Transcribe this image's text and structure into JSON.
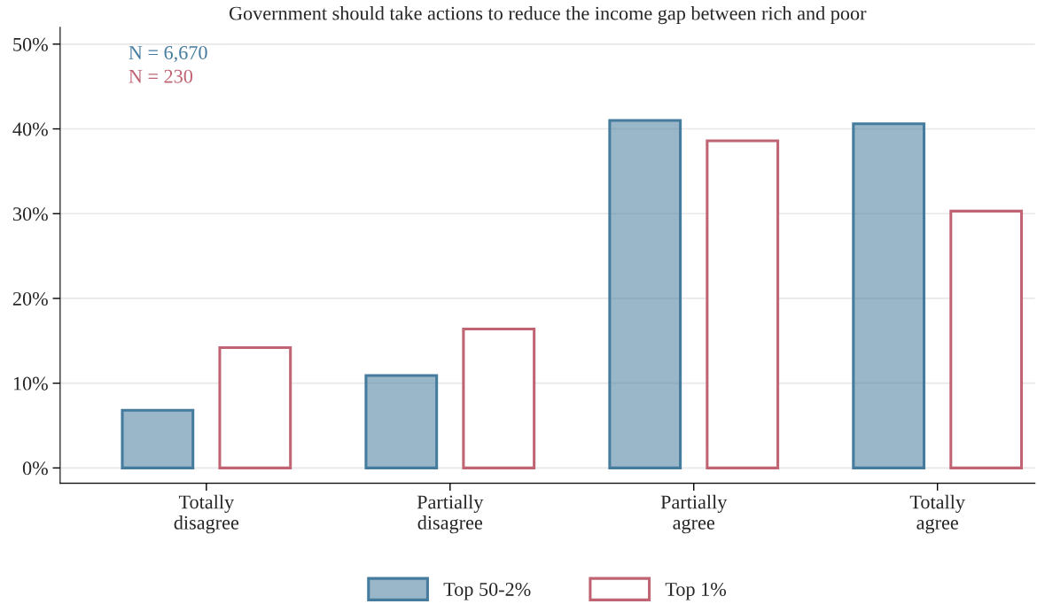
{
  "chart_data": {
    "type": "bar",
    "title": "Government should take actions to reduce the income gap between rich and poor",
    "categories": [
      "Totally\ndisagree",
      "Partially\ndisagree",
      "Partially\nagree",
      "Totally\nagree"
    ],
    "series": [
      {
        "name": "Top 50-2%",
        "color": "#457b9d",
        "values": [
          6.8,
          10.9,
          41.0,
          40.6
        ]
      },
      {
        "name": "Top 1%",
        "color": "#c06474",
        "values": [
          14.2,
          16.4,
          38.6,
          30.3
        ]
      }
    ],
    "ylim": [
      -1.8,
      52
    ],
    "yticks": [
      {
        "value": 0,
        "label": "0%"
      },
      {
        "value": 10,
        "label": "10%"
      },
      {
        "value": 20,
        "label": "20%"
      },
      {
        "value": 30,
        "label": "30%"
      },
      {
        "value": 40,
        "label": "40%"
      },
      {
        "value": 50,
        "label": "50%"
      }
    ],
    "grid": "y",
    "legend": "bottom",
    "annotations": [
      "N = 6,670",
      "N = 230"
    ]
  }
}
